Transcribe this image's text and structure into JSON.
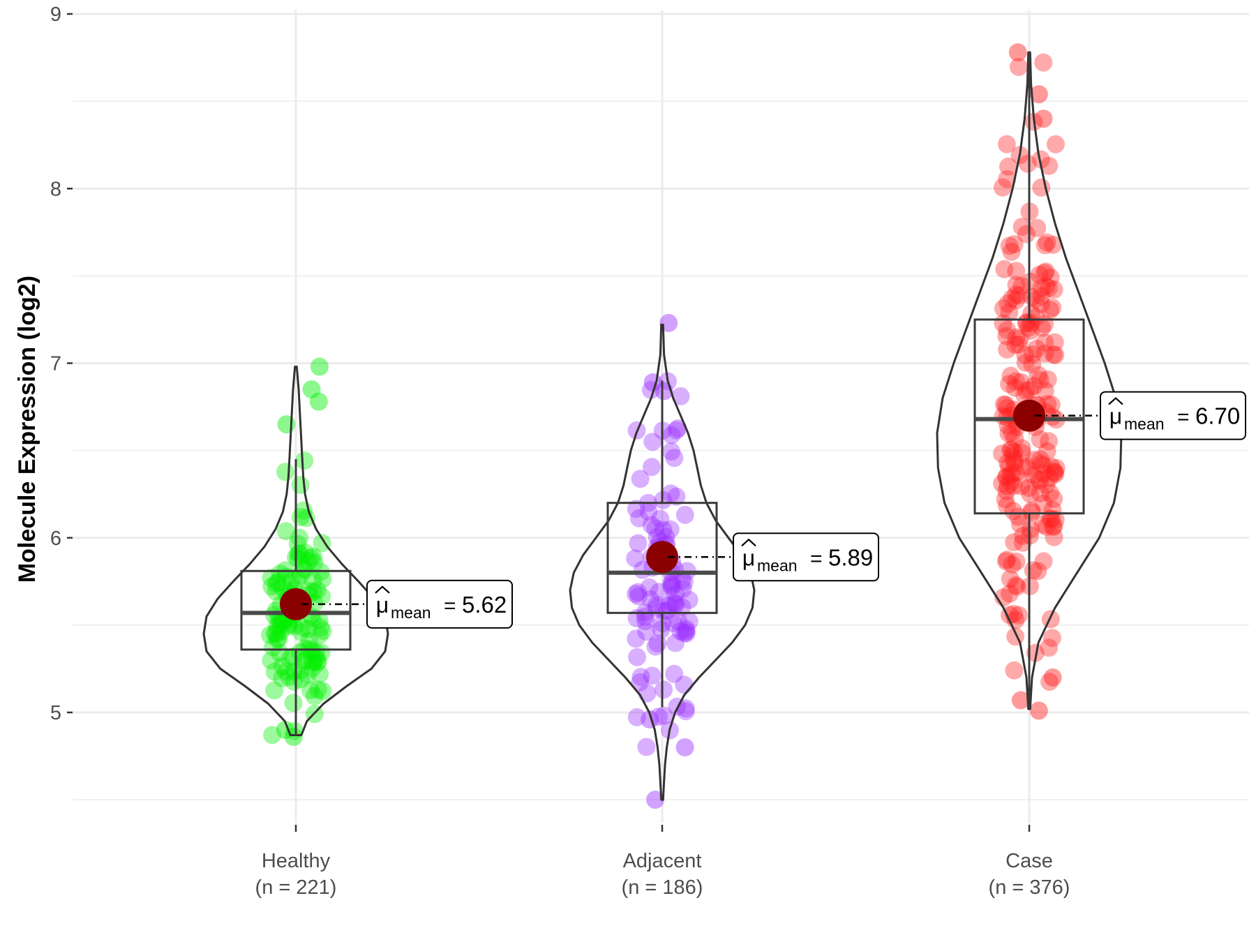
{
  "chart_data": {
    "type": "violin-box-jitter",
    "title": "",
    "xlabel": "",
    "ylabel": "Molecule Expression (log2)",
    "ylim": [
      4.25,
      9.05
    ],
    "yticks": [
      5,
      6,
      7,
      8,
      9
    ],
    "ytick_labels": [
      "5",
      "6",
      "7",
      "8",
      "9"
    ],
    "grid": true,
    "mean_symbol": "μ",
    "mean_subscript": "mean",
    "mean_equals": "=",
    "groups": [
      {
        "name": "Healthy",
        "n_label": "(n = 221)",
        "n": 221,
        "color": "#00ee00",
        "mean": 5.62,
        "mean_label": "5.62",
        "box": {
          "q1": 5.36,
          "median": 5.57,
          "q3": 5.81,
          "whisker_low": 4.87,
          "whisker_high": 6.45
        },
        "violin_min": 4.87,
        "violin_max": 6.98,
        "density": [
          [
            4.87,
            0.06
          ],
          [
            4.95,
            0.12
          ],
          [
            5.05,
            0.3
          ],
          [
            5.15,
            0.55
          ],
          [
            5.25,
            0.82
          ],
          [
            5.35,
            0.97
          ],
          [
            5.45,
            1.0
          ],
          [
            5.55,
            0.97
          ],
          [
            5.65,
            0.85
          ],
          [
            5.75,
            0.68
          ],
          [
            5.85,
            0.5
          ],
          [
            5.95,
            0.34
          ],
          [
            6.05,
            0.22
          ],
          [
            6.15,
            0.14
          ],
          [
            6.25,
            0.1
          ],
          [
            6.35,
            0.08
          ],
          [
            6.45,
            0.07
          ],
          [
            6.55,
            0.06
          ],
          [
            6.65,
            0.05
          ],
          [
            6.75,
            0.04
          ],
          [
            6.85,
            0.03
          ],
          [
            6.98,
            0.01
          ]
        ],
        "extreme_points": [
          4.86,
          4.9,
          6.98,
          6.85,
          6.78,
          6.65
        ]
      },
      {
        "name": "Adjacent",
        "n_label": "(n = 186)",
        "n": 186,
        "color": "#9b30ff",
        "mean": 5.89,
        "mean_label": "5.89",
        "box": {
          "q1": 5.57,
          "median": 5.8,
          "q3": 6.2,
          "whisker_low": 5.03,
          "whisker_high": 6.9
        },
        "violin_min": 4.5,
        "violin_max": 7.22,
        "density": [
          [
            4.5,
            0.01
          ],
          [
            4.6,
            0.02
          ],
          [
            4.7,
            0.03
          ],
          [
            4.8,
            0.05
          ],
          [
            4.9,
            0.08
          ],
          [
            5.0,
            0.14
          ],
          [
            5.1,
            0.24
          ],
          [
            5.2,
            0.4
          ],
          [
            5.3,
            0.58
          ],
          [
            5.4,
            0.76
          ],
          [
            5.5,
            0.9
          ],
          [
            5.6,
            0.98
          ],
          [
            5.7,
            1.0
          ],
          [
            5.8,
            0.96
          ],
          [
            5.9,
            0.86
          ],
          [
            6.0,
            0.72
          ],
          [
            6.1,
            0.58
          ],
          [
            6.2,
            0.48
          ],
          [
            6.3,
            0.42
          ],
          [
            6.4,
            0.38
          ],
          [
            6.5,
            0.34
          ],
          [
            6.6,
            0.28
          ],
          [
            6.7,
            0.2
          ],
          [
            6.8,
            0.12
          ],
          [
            6.9,
            0.06
          ],
          [
            7.05,
            0.02
          ],
          [
            7.22,
            0.01
          ]
        ],
        "extreme_points": [
          4.5,
          4.8,
          4.96,
          7.23,
          6.84,
          6.89
        ]
      },
      {
        "name": "Case",
        "n_label": "(n = 376)",
        "n": 376,
        "color": "#ff2020",
        "mean": 6.7,
        "mean_label": "6.70",
        "box": {
          "q1": 6.14,
          "median": 6.68,
          "q3": 7.25,
          "whisker_low": 5.02,
          "whisker_high": 8.78
        },
        "violin_min": 5.02,
        "violin_max": 8.78,
        "density": [
          [
            5.02,
            0.01
          ],
          [
            5.2,
            0.03
          ],
          [
            5.4,
            0.1
          ],
          [
            5.6,
            0.28
          ],
          [
            5.8,
            0.52
          ],
          [
            6.0,
            0.76
          ],
          [
            6.2,
            0.92
          ],
          [
            6.4,
            0.99
          ],
          [
            6.6,
            1.0
          ],
          [
            6.8,
            0.94
          ],
          [
            7.0,
            0.82
          ],
          [
            7.2,
            0.68
          ],
          [
            7.4,
            0.54
          ],
          [
            7.6,
            0.4
          ],
          [
            7.8,
            0.28
          ],
          [
            8.0,
            0.18
          ],
          [
            8.2,
            0.1
          ],
          [
            8.4,
            0.05
          ],
          [
            8.6,
            0.02
          ],
          [
            8.78,
            0.01
          ]
        ],
        "extreme_points": [
          8.78,
          8.54,
          8.4,
          5.01,
          5.07,
          5.2
        ]
      }
    ]
  }
}
